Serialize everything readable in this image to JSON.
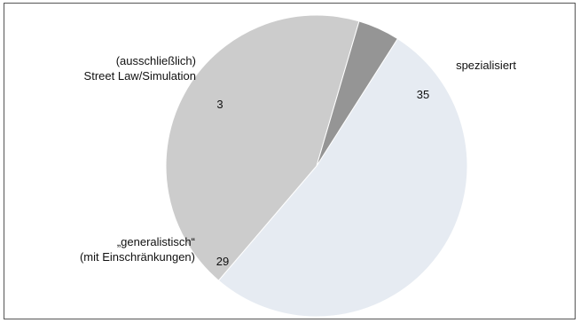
{
  "chart_data": {
    "type": "pie",
    "title": "",
    "slices": [
      {
        "name_lines": [
          "spezialisiert"
        ],
        "value": 35,
        "value_label": "35",
        "color": "#e6ebf2"
      },
      {
        "name_lines": [
          "„generalistisch“",
          "(mit Einschränkungen)"
        ],
        "value": 29,
        "value_label": "29",
        "color": "#cccccc"
      },
      {
        "name_lines": [
          "(ausschließlich)",
          "Street Law/Simulation"
        ],
        "value": 3,
        "value_label": "3",
        "color": "#959595"
      }
    ],
    "legend": "none",
    "colors": {
      "border": "#555555",
      "slice_edge": "#ffffff"
    }
  }
}
